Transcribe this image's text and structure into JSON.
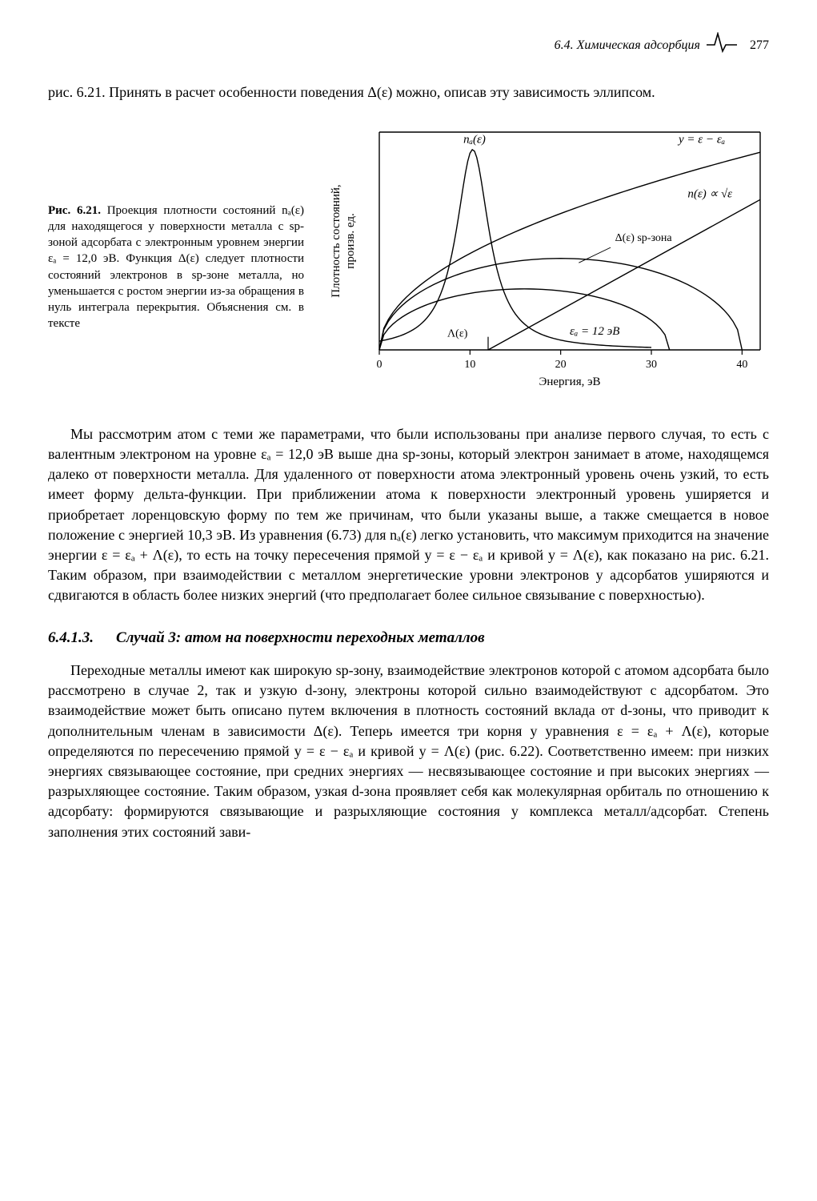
{
  "header": {
    "section_label": "6.4. Химическая адсорбция",
    "page_number": "277"
  },
  "intro_paragraph": "рис. 6.21. Принять в расчет особенности поведения Δ(ε) можно, описав эту зависимость эллипсом.",
  "figure": {
    "caption_bold": "Рис. 6.21.",
    "caption_text": " Проекция плотности состояний nₐ(ε) для находящегося у поверхности металла с sp-зоной адсорбата с электронным уровнем энергии εₐ = 12,0 эВ. Функция Δ(ε) следует плотности состояний электронов в sp-зоне металла, но уменьшается с ростом энергии из-за обращения в нуль интеграла перекрытия. Объяснения см. в тексте",
    "ylabel": "Плотность состояний,\nпроизв. ед.",
    "xlabel": "Энергия, эВ",
    "xlim": [
      0,
      42
    ],
    "ylim": [
      0,
      10
    ],
    "xticks": [
      0,
      10,
      20,
      30,
      40
    ],
    "label_fontsize": 14,
    "axis_fontsize": 14,
    "line_color": "#000000",
    "background_color": "#ffffff",
    "line_width": 1.4,
    "annotations": {
      "na_eps": "nₐ(ε)",
      "y_line": "y = ε − εₐ",
      "n_eps": "n(ε) ∝ √ε",
      "delta_sp": "Δ(ε) sp-зона",
      "lambda": "Λ(ε)",
      "eps_a": "εₐ = 12 эВ"
    },
    "curves": {
      "na": {
        "type": "lorentzian_peak",
        "center": 10.3,
        "height": 9.2,
        "hw": 2.2
      },
      "Lambda": {
        "type": "ellipse_arc",
        "xspan": [
          0,
          32
        ],
        "ymax": 2.8
      },
      "Delta_sp": {
        "type": "ellipse_arc",
        "xspan": [
          0,
          40
        ],
        "ymax": 4.2
      },
      "sqrt": {
        "type": "sqrt",
        "scale": 1.4
      },
      "line": {
        "type": "linear",
        "slope": 0.23,
        "x0": 12,
        "y0": 0
      }
    }
  },
  "paragraph2": "Мы рассмотрим атом с теми же параметрами, что были использованы при анализе первого случая, то есть с валентным электроном на уровне εₐ = 12,0 эВ выше дна sp-зоны, который электрон занимает в атоме, находящемся далеко от поверхности металла. Для удаленного от поверхности атома электронный уровень очень узкий, то есть имеет форму дельта-функции. При приближении атома к поверхности электронный уровень уширяется и приобретает лоренцовскую форму по тем же причинам, что были указаны выше, а также смещается в новое положение с энергией 10,3 эВ. Из уравнения (6.73) для nₐ(ε) легко установить, что максимум приходится на значение энергии ε = εₐ + Λ(ε), то есть на точку пересечения прямой y = ε − εₐ и кривой y = Λ(ε), как показано на рис. 6.21. Таким образом, при взаимодействии с металлом энергетические уровни электронов у адсорбатов уширяются и сдвигаются в область более низких энергий (что предполагает более сильное связывание с поверхностью).",
  "section": {
    "number": "6.4.1.3.",
    "title": "Случай 3: атом на поверхности переходных металлов"
  },
  "paragraph3": "Переходные металлы имеют как широкую sp-зону, взаимодействие электронов которой с атомом адсорбата было рассмотрено в случае 2, так и узкую d-зону, электроны которой сильно взаимодействуют с адсорбатом. Это взаимодействие может быть описано путем включения в плотность состояний вклада от d-зоны, что приводит к дополнительным членам в зависимости Δ(ε). Теперь имеется три корня у уравнения ε = εₐ + Λ(ε), которые определяются по пересечению прямой y = ε − εₐ и кривой y = Λ(ε) (рис. 6.22). Соответственно имеем: при низких энергиях связывающее состояние, при средних энергиях — несвязывающее состояние и при высоких энергиях — разрыхляющее состояние. Таким образом, узкая d-зона проявляет себя как молекулярная орбиталь по отношению к адсорбату: формируются связывающие и разрыхляющие состояния у комплекса металл/адсорбат. Степень заполнения этих состояний зави-"
}
